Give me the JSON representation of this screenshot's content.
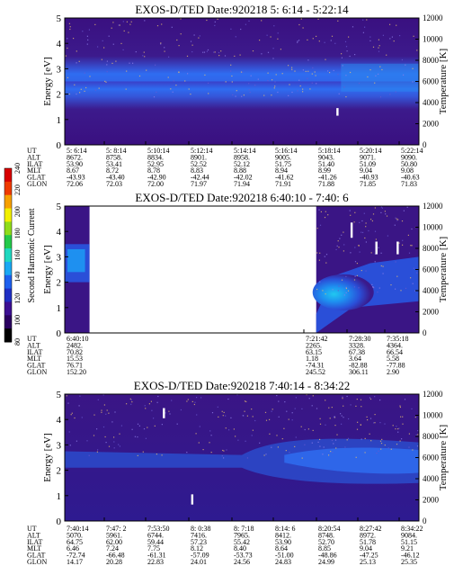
{
  "chart_data": [
    {
      "type": "heatmap",
      "title": "EXOS-D/TED   Date:920218  5: 6:14 - 5:22:14",
      "ylabel": "Energy [eV]",
      "y2label": "Temperature [K]",
      "ylim": [
        0,
        5
      ],
      "y2lim": [
        0,
        12000
      ],
      "yticks": [
        "0",
        "1",
        "2",
        "3",
        "4",
        "5"
      ],
      "y2ticks": [
        "0",
        "2000",
        "4000",
        "6000",
        "8000",
        "10000",
        "12000"
      ],
      "columns": [
        "5: 6:14",
        "5: 8:14",
        "5:10:14",
        "5:12:14",
        "5:14:14",
        "5:16:14",
        "5:18:14",
        "5:20:14",
        "5:22:14"
      ],
      "rows": [
        {
          "label": "UT",
          "values": [
            "5: 6:14",
            "5: 8:14",
            "5:10:14",
            "5:12:14",
            "5:14:14",
            "5:16:14",
            "5:18:14",
            "5:20:14",
            "5:22:14"
          ]
        },
        {
          "label": "ALT",
          "values": [
            "8672.",
            "8758.",
            "8834.",
            "8901.",
            "8958.",
            "9005.",
            "9043.",
            "9071.",
            "9090."
          ]
        },
        {
          "label": "ILAT",
          "values": [
            "53.90",
            "53.41",
            "52.95",
            "52.52",
            "52.12",
            "51.75",
            "51.40",
            "51.09",
            "50.80"
          ]
        },
        {
          "label": "MLT",
          "values": [
            "8.67",
            "8.72",
            "8.78",
            "8.83",
            "8.88",
            "8.94",
            "8.99",
            "9.04",
            "9.08"
          ]
        },
        {
          "label": "GLAT",
          "values": [
            "-43.93",
            "-43.40",
            "-42.90",
            "-42.44",
            "-42.02",
            "-41.62",
            "-41.26",
            "-40.93",
            "-40.63"
          ]
        },
        {
          "label": "GLON",
          "values": [
            "72.06",
            "72.03",
            "72.00",
            "71.97",
            "71.94",
            "71.91",
            "71.88",
            "71.85",
            "71.83"
          ]
        }
      ],
      "band": [
        {
          "x": 0,
          "center": 2.2,
          "half": 0.45
        },
        {
          "x": 1,
          "center": 2.2,
          "half": 0.45
        }
      ],
      "ion_line": [
        {
          "x": 0.77,
          "y0": 1.15,
          "y1": 1.45
        }
      ]
    },
    {
      "type": "heatmap",
      "title": "EXOS-D/TED   Date:920218  6:40:10 - 7:40: 6",
      "ylabel": "Energy [eV]",
      "y2label": "Temperature [K]",
      "ylim": [
        0,
        5
      ],
      "y2lim": [
        0,
        12000
      ],
      "yticks": [
        "0",
        "1",
        "2",
        "3",
        "4",
        "5"
      ],
      "y2ticks": [
        "0",
        "2000",
        "4000",
        "6000",
        "8000",
        "10000",
        "12000"
      ],
      "data_gap": [
        0.07,
        0.71
      ],
      "columns": [
        "6:40:10",
        "7:21:42",
        "7:28:30",
        "7:35:18"
      ],
      "rows": [
        {
          "label": "UT",
          "values": [
            "6:40:10",
            "7:21:42",
            "7:28:30",
            "7:35:18"
          ]
        },
        {
          "label": "ALT",
          "values": [
            "2482.",
            "2265.",
            "3328.",
            "4364."
          ]
        },
        {
          "label": "ILAT",
          "values": [
            "70.82",
            "63.15",
            "67.38",
            "66.54"
          ]
        },
        {
          "label": "MLT",
          "values": [
            "15.53",
            "1.18",
            "3.64",
            "5.58"
          ]
        },
        {
          "label": "GLAT",
          "values": [
            "76.71",
            "-74.31",
            "-82.88",
            "-77.88"
          ]
        },
        {
          "label": "GLON",
          "values": [
            "152.20",
            "245.52",
            "306.11",
            "2.90"
          ]
        }
      ],
      "ion_line": [
        {
          "x": 0.81,
          "y0": 3.75,
          "y1": 4.35
        },
        {
          "x": 0.88,
          "y0": 3.1,
          "y1": 3.6
        },
        {
          "x": 0.94,
          "y0": 3.1,
          "y1": 3.6
        }
      ]
    },
    {
      "type": "heatmap",
      "title": "EXOS-D/TED   Date:920218  7:40:14 - 8:34:22",
      "ylabel": "Energy [eV]",
      "y2label": "Temperature [K]",
      "ylim": [
        0,
        5
      ],
      "y2lim": [
        0,
        12000
      ],
      "yticks": [
        "0",
        "1",
        "2",
        "3",
        "4",
        "5"
      ],
      "y2ticks": [
        "0",
        "2000",
        "4000",
        "6000",
        "8000",
        "10000",
        "12000"
      ],
      "columns": [
        "7:40:14",
        "7:47: 2",
        "7:53:50",
        "8: 0:38",
        "8: 7:18",
        "8:14: 6",
        "8:20:54",
        "8:27:42",
        "8:34:22"
      ],
      "rows": [
        {
          "label": "UT",
          "values": [
            "7:40:14",
            "7:47: 2",
            "7:53:50",
            "8: 0:38",
            "8: 7:18",
            "8:14: 6",
            "8:20:54",
            "8:27:42",
            "8:34:22"
          ]
        },
        {
          "label": "ALT",
          "values": [
            "5070.",
            "5961.",
            "6744.",
            "7416.",
            "7965.",
            "8412.",
            "8748.",
            "8972.",
            "9084."
          ]
        },
        {
          "label": "ILAT",
          "values": [
            "64.75",
            "62.00",
            "59.44",
            "57.23",
            "55.42",
            "53.90",
            "52.70",
            "51.78",
            "51.15"
          ]
        },
        {
          "label": "MLT",
          "values": [
            "6.46",
            "7.24",
            "7.75",
            "8.12",
            "8.40",
            "8.64",
            "8.85",
            "9.04",
            "9.21"
          ]
        },
        {
          "label": "GLAT",
          "values": [
            "-72.74",
            "-66.48",
            "-61.31",
            "-57.09",
            "-53.73",
            "-51.00",
            "-48.86",
            "-47.25",
            "-46.12"
          ]
        },
        {
          "label": "GLON",
          "values": [
            "14.17",
            "20.28",
            "22.83",
            "24.01",
            "24.56",
            "24.83",
            "24.99",
            "25.13",
            "25.35"
          ]
        }
      ],
      "ion_line": [
        {
          "x": 0.28,
          "y0": 4.05,
          "y1": 4.45
        },
        {
          "x": 0.36,
          "y0": 0.65,
          "y1": 1.05
        }
      ]
    }
  ],
  "colorbar": {
    "label": "Second Harmonic Current",
    "ticks": [
      "80",
      "100",
      "120",
      "140",
      "160",
      "180",
      "200",
      "220",
      "240"
    ],
    "colors": [
      "#000000",
      "#2a0060",
      "#3c0f92",
      "#1f2fc4",
      "#1e60ee",
      "#1aa8f3",
      "#20d8c0",
      "#24c94a",
      "#8fdc1a",
      "#f2f000",
      "#f7a000",
      "#ef3a00",
      "#d80000"
    ]
  }
}
